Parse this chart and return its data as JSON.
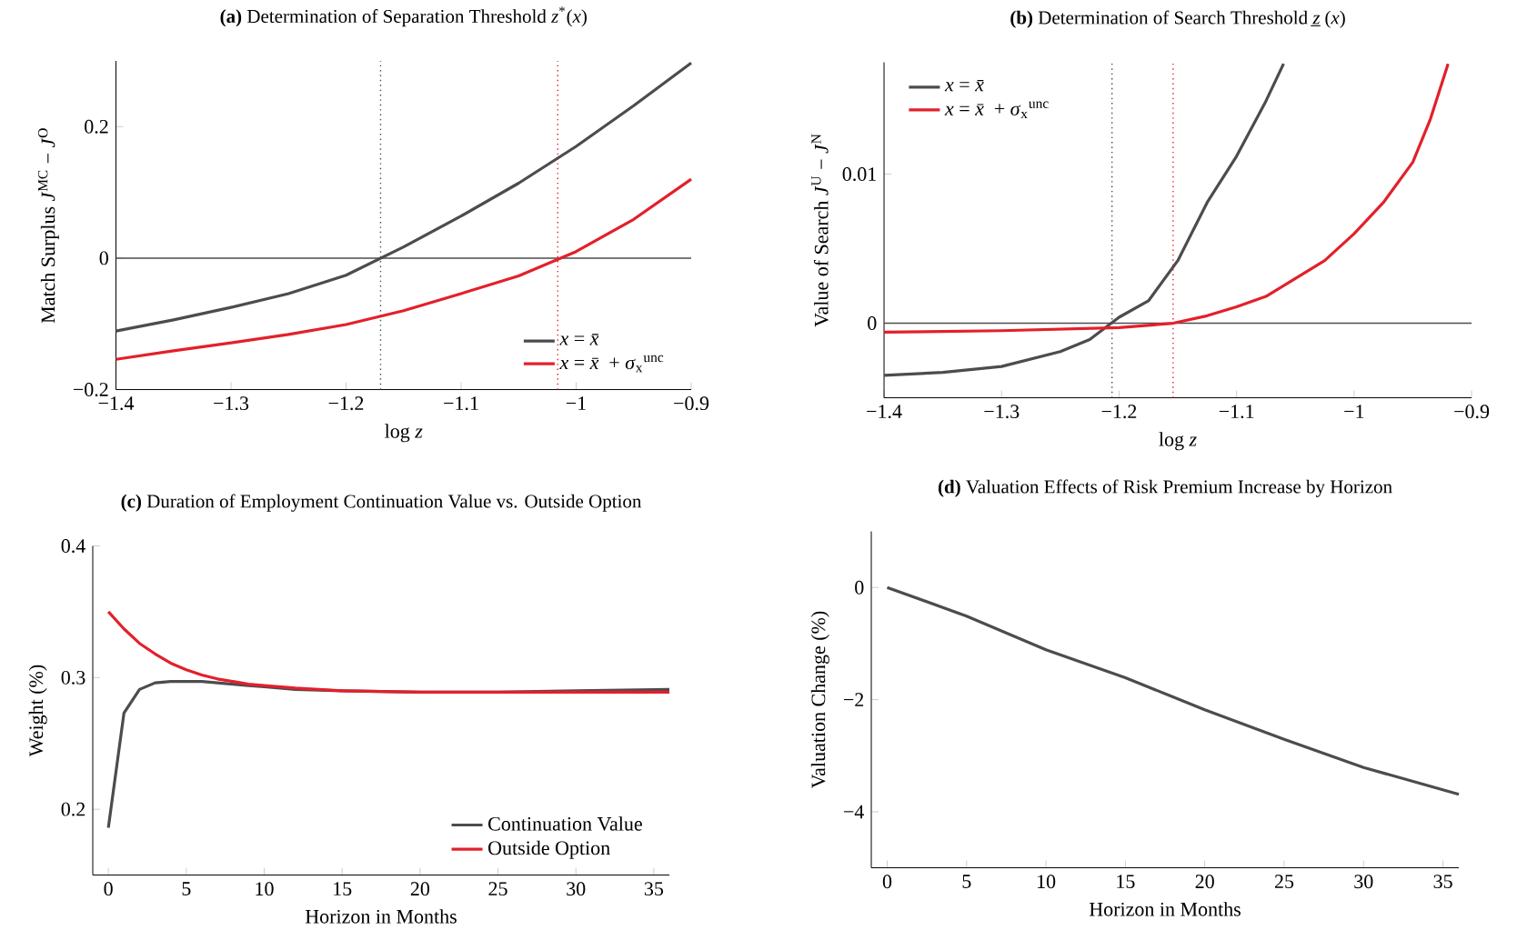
{
  "chart_data": [
    {
      "type": "line",
      "title": "**(a)** Determination of Separation Threshold *z*$^{*}$(*x*)",
      "xlabel": "log *z*",
      "ylabel": "Match Surplus *J*$^{MC}$ − *J*$^{O}$",
      "xlim": [
        -1.4,
        -0.9
      ],
      "ylim": [
        -0.2,
        0.3
      ],
      "xticks": [
        {
          "value": -1.4,
          "label": "−1.4"
        },
        {
          "value": -1.3,
          "label": "−1.3"
        },
        {
          "value": -1.2,
          "label": "−1.2"
        },
        {
          "value": -1.1,
          "label": "−1.1"
        },
        {
          "value": -1,
          "label": "−1"
        },
        {
          "value": -0.9,
          "label": "−0.9"
        }
      ],
      "yticks": [
        {
          "value": -0.2,
          "label": "−0.2"
        },
        0,
        0.2
      ],
      "legend": "bottom right",
      "ref_lines": [
        {
          "axis": "y",
          "value": 0,
          "color": "#4d4d4d",
          "line_style": "solid"
        },
        {
          "axis": "x",
          "value": -1.17,
          "color": "#4d4b50",
          "line_style": "dotted"
        },
        {
          "axis": "x",
          "value": -1.016,
          "color": "#e3202a",
          "line_style": "dotted"
        }
      ],
      "series": [
        {
          "name": "*x* = *x̄*",
          "color": "#4d4b50",
          "x": [
            -1.4,
            -1.35,
            -1.3,
            -1.25,
            -1.2,
            -1.15,
            -1.1,
            -1.05,
            -1,
            -0.95,
            -0.9
          ],
          "values": [
            -0.111,
            -0.094,
            -0.075,
            -0.054,
            -0.026,
            0.017,
            0.064,
            0.114,
            0.17,
            0.232,
            0.297
          ]
        },
        {
          "name": "*x* = *x̄* + *σ*$_{x}$$^{unc}$",
          "color": "#e3202a",
          "x": [
            -1.4,
            -1.35,
            -1.3,
            -1.25,
            -1.2,
            -1.15,
            -1.1,
            -1.05,
            -1,
            -0.95,
            -0.9
          ],
          "values": [
            -0.154,
            -0.141,
            -0.129,
            -0.116,
            -0.101,
            -0.08,
            -0.054,
            -0.027,
            0.01,
            0.059,
            0.12
          ]
        }
      ]
    },
    {
      "type": "line",
      "title": "**(b)** Determination of Search Threshold *z̲*(*x*)",
      "xlabel": "log *z*",
      "ylabel": "Value of Search *J*$^{U}$ − *J*$^{N}$",
      "xlim": [
        -1.4,
        -0.9
      ],
      "ylim": [
        -0.005,
        0.0175
      ],
      "xticks": [
        {
          "value": -1.4,
          "label": "−1.4"
        },
        {
          "value": -1.3,
          "label": "−1.3"
        },
        {
          "value": -1.2,
          "label": "−1.2"
        },
        {
          "value": -1.1,
          "label": "−1.1"
        },
        {
          "value": -1,
          "label": "−1"
        },
        {
          "value": -0.9,
          "label": "−0.9"
        }
      ],
      "yticks": [
        0,
        0.01
      ],
      "legend": "top left",
      "ref_lines": [
        {
          "axis": "y",
          "value": 0,
          "color": "#4d4d4d",
          "line_style": "solid"
        },
        {
          "axis": "x",
          "value": -1.206,
          "color": "#4d4b50",
          "line_style": "dotted"
        },
        {
          "axis": "x",
          "value": -1.154,
          "color": "#e3202a",
          "line_style": "dotted"
        }
      ],
      "series": [
        {
          "name": "*x* = *x̄*",
          "color": "#4d4b50",
          "x": [
            -1.4,
            -1.35,
            -1.3,
            -1.25,
            -1.225,
            -1.2,
            -1.175,
            -1.15,
            -1.125,
            -1.1,
            -1.075,
            -1.06
          ],
          "values": [
            -0.0035,
            -0.0033,
            -0.0029,
            -0.0019,
            -0.0011,
            0.0004,
            0.0015,
            0.0042,
            0.0081,
            0.0112,
            0.0149,
            0.0174
          ]
        },
        {
          "name": "*x* = *x̄* + *σ*$_{x}$$^{unc}$",
          "color": "#e3202a",
          "x": [
            -1.4,
            -1.3,
            -1.2,
            -1.154,
            -1.125,
            -1.1,
            -1.075,
            -1.05,
            -1.025,
            -1,
            -0.975,
            -0.95,
            -0.935,
            -0.92
          ],
          "values": [
            -0.0006,
            -0.0005,
            -0.0003,
            0,
            0.0005,
            0.0011,
            0.0018,
            0.003,
            0.0042,
            0.006,
            0.0081,
            0.0108,
            0.0137,
            0.0174
          ]
        }
      ]
    },
    {
      "type": "line",
      "title": "**(c)** Duration of Employment Continuation Value vs. Outside Option",
      "xlabel": "Horizon in Months",
      "ylabel": "Weight (%)",
      "xlim": [
        -1,
        36
      ],
      "ylim": [
        0.15,
        0.4
      ],
      "xticks": [
        0,
        5,
        10,
        15,
        20,
        25,
        30,
        35
      ],
      "yticks": [
        0.2,
        0.3,
        0.4
      ],
      "legend": "bottom right",
      "series": [
        {
          "name": "Continuation Value",
          "color": "#4d4b50",
          "x": [
            0,
            1,
            2,
            3,
            4,
            5,
            6,
            7,
            8,
            9,
            10,
            12,
            15,
            20,
            25,
            30,
            36
          ],
          "values": [
            0.186,
            0.273,
            0.291,
            0.296,
            0.297,
            0.297,
            0.297,
            0.296,
            0.295,
            0.294,
            0.293,
            0.291,
            0.29,
            0.289,
            0.289,
            0.29,
            0.291
          ]
        },
        {
          "name": "Outside Option",
          "color": "#e3202a",
          "x": [
            0,
            1,
            2,
            3,
            4,
            5,
            6,
            7,
            8,
            9,
            10,
            12,
            15,
            20,
            25,
            30,
            36
          ],
          "values": [
            0.35,
            0.337,
            0.326,
            0.318,
            0.311,
            0.306,
            0.302,
            0.299,
            0.297,
            0.295,
            0.294,
            0.292,
            0.29,
            0.289,
            0.289,
            0.289,
            0.289
          ]
        }
      ]
    },
    {
      "type": "line",
      "title": "**(d)** Valuation Effects of Risk Premium Increase by Horizon",
      "xlabel": "Horizon in Months",
      "ylabel": "Valuation Change (%)",
      "xlim": [
        -1,
        36
      ],
      "ylim": [
        -5,
        1
      ],
      "xticks": [
        0,
        5,
        10,
        15,
        20,
        25,
        30,
        35
      ],
      "yticks": [
        {
          "value": -4,
          "label": "−4"
        },
        {
          "value": -2,
          "label": "−2"
        },
        0
      ],
      "series": [
        {
          "color": "#4d4b50",
          "x": [
            0,
            5,
            10,
            15,
            20,
            25,
            30,
            36
          ],
          "values": [
            0,
            -0.51,
            -1.11,
            -1.61,
            -2.18,
            -2.71,
            -3.21,
            -3.69
          ]
        }
      ]
    }
  ]
}
